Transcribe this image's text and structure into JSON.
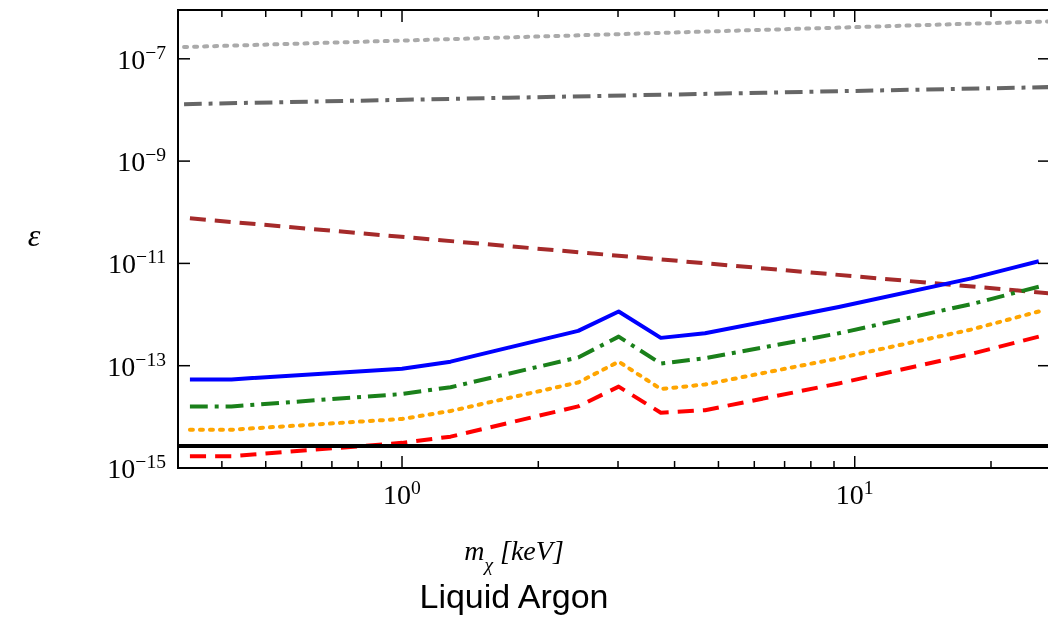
{
  "chart_data": {
    "type": "line",
    "xlabel": "m$_{χ}$ [keV]",
    "ylabel": "ε",
    "annotations": [
      "Liquid Argon"
    ],
    "log": "xy",
    "grid": false,
    "xlim": [
      0.32,
      27
    ],
    "ylim": [
      1e-15,
      9e-07
    ],
    "xticks": [
      {
        "value": 0.4,
        "label": null
      },
      {
        "value": 0.5,
        "label": null
      },
      {
        "value": 0.6,
        "label": null
      },
      {
        "value": 0.7,
        "label": null
      },
      {
        "value": 0.8,
        "label": null
      },
      {
        "value": 0.9,
        "label": null
      },
      {
        "value": 1,
        "label": "10$^{0}$"
      },
      {
        "value": 2,
        "label": null
      },
      {
        "value": 3,
        "label": null
      },
      {
        "value": 4,
        "label": null
      },
      {
        "value": 5,
        "label": null
      },
      {
        "value": 6,
        "label": null
      },
      {
        "value": 7,
        "label": null
      },
      {
        "value": 8,
        "label": null
      },
      {
        "value": 9,
        "label": null
      },
      {
        "value": 10,
        "label": "10$^{1}$"
      },
      {
        "value": 20,
        "label": null
      }
    ],
    "yticks": [
      {
        "value": 1e-15,
        "label": "10$^{−15}$"
      },
      {
        "value": 1e-13,
        "label": "10$^{−13}$"
      },
      {
        "value": 1e-11,
        "label": "10$^{−11}$"
      },
      {
        "value": 1e-09,
        "label": "10$^{−9}$"
      },
      {
        "value": 1e-07,
        "label": "10$^{−7}$"
      }
    ],
    "x": [
      0.34,
      0.42,
      1.0,
      1.28,
      2.45,
      3.01,
      3.73,
      4.67,
      9.22,
      18.1,
      25.5
    ],
    "series": [
      {
        "color": "#aaaaaa",
        "line_style": "dotted",
        "x": [
          0.33,
          27
        ],
        "values": [
          1.7e-07,
          5.4e-07
        ]
      },
      {
        "color": "#666666",
        "line_style": "dashdot",
        "x": [
          0.33,
          27
        ],
        "values": [
          1.3e-08,
          2.8e-08
        ]
      },
      {
        "color": "#a52a2a",
        "line_style": "dashed",
        "x": [
          0.34,
          27
        ],
        "values": [
          7.6e-11,
          2.6e-12
        ]
      },
      {
        "color": "#0000ff",
        "line_style": "solid",
        "values": [
          5.4e-14,
          5.4e-14,
          8.7e-14,
          1.2e-13,
          4.8e-13,
          1.15e-12,
          3.5e-13,
          4.3e-13,
          1.4e-12,
          5.1e-12,
          1.1e-11
        ]
      },
      {
        "color": "#1a801a",
        "line_style": "dashdot",
        "values": [
          1.6e-14,
          1.6e-14,
          2.8e-14,
          3.8e-14,
          1.45e-13,
          3.7e-13,
          1.1e-13,
          1.4e-13,
          4.3e-13,
          1.6e-12,
          3.5e-12
        ]
      },
      {
        "color": "#ffa500",
        "line_style": "dotted",
        "values": [
          5.6e-15,
          5.6e-15,
          9.1e-15,
          1.3e-14,
          4.7e-14,
          1.2e-13,
          3.5e-14,
          4.3e-14,
          1.4e-13,
          5.1e-13,
          1.15e-12
        ]
      },
      {
        "color": "#ff0000",
        "line_style": "dashed",
        "values": [
          1.7e-15,
          1.7e-15,
          3.1e-15,
          4.1e-15,
          1.6e-14,
          3.9e-14,
          1.2e-14,
          1.35e-14,
          4.5e-14,
          1.7e-13,
          3.7e-13
        ]
      },
      {
        "color": "#000000",
        "line_style": "solid",
        "x": [
          0.32,
          27
        ],
        "values": [
          2.7e-15,
          2.7e-15
        ]
      }
    ]
  }
}
